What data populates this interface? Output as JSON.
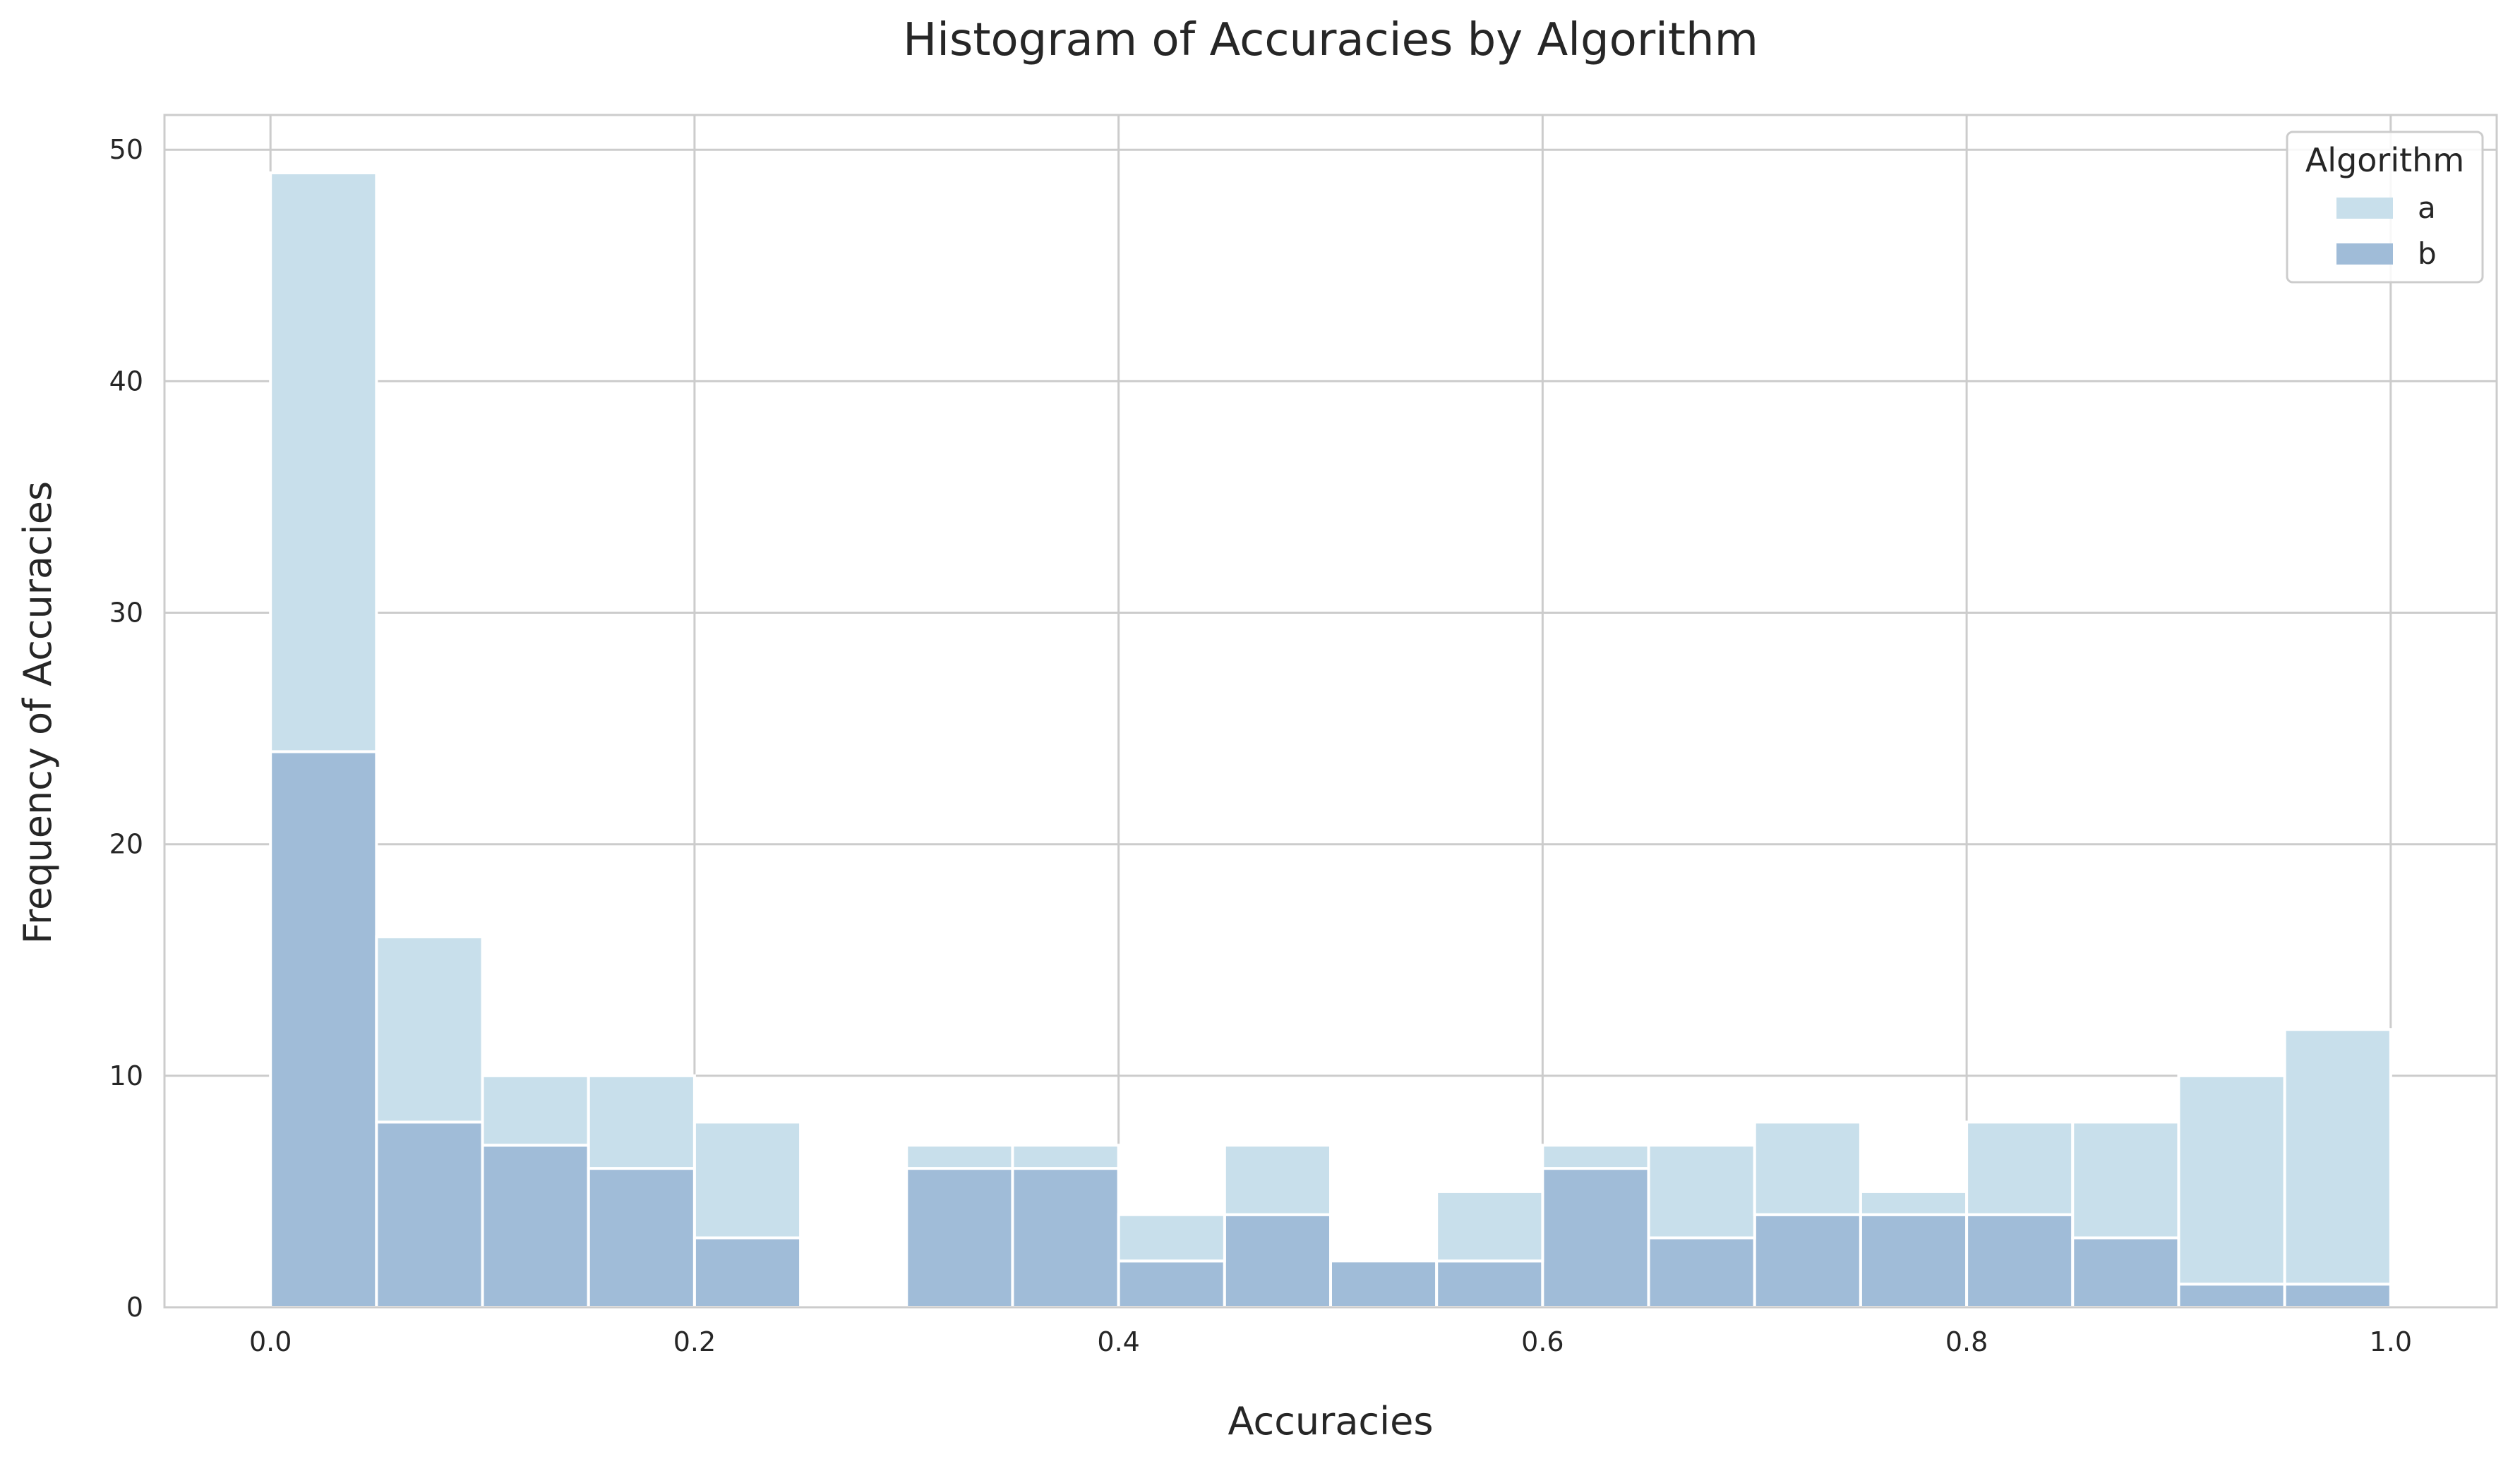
{
  "chart_data": {
    "type": "bar",
    "title": "Histogram of Accuracies by Algorithm",
    "xlabel": "Accuracies",
    "ylabel": "Frequency of Accuracies",
    "xlim": [
      -0.05,
      1.05
    ],
    "ylim": [
      0,
      51.5
    ],
    "x_ticks": [
      0.0,
      0.2,
      0.4,
      0.6,
      0.8,
      1.0
    ],
    "x_tick_labels": [
      "0.0",
      "0.2",
      "0.4",
      "0.6",
      "0.8",
      "1.0"
    ],
    "y_ticks": [
      0,
      10,
      20,
      30,
      40,
      50
    ],
    "y_tick_labels": [
      "0",
      "10",
      "20",
      "30",
      "40",
      "50"
    ],
    "grid": true,
    "stacked": true,
    "bin_edges": [
      0.0,
      0.05,
      0.1,
      0.15,
      0.2,
      0.25,
      0.3,
      0.35,
      0.4,
      0.45,
      0.5,
      0.55,
      0.6,
      0.65,
      0.7,
      0.75,
      0.8,
      0.85,
      0.9,
      0.95,
      1.0
    ],
    "legend": {
      "title": "Algorithm",
      "position": "top-right"
    },
    "series": [
      {
        "name": "b",
        "color": "#a0bcd8",
        "values": [
          24,
          8,
          7,
          6,
          3,
          0,
          6,
          6,
          2,
          4,
          2,
          2,
          6,
          3,
          4,
          4,
          4,
          3,
          1,
          1
        ]
      },
      {
        "name": "a",
        "color": "#c8dfeb",
        "values": [
          25,
          8,
          3,
          4,
          5,
          0,
          1,
          1,
          2,
          3,
          0,
          3,
          1,
          4,
          4,
          1,
          4,
          5,
          9,
          11
        ]
      }
    ],
    "legend_order": [
      "a",
      "b"
    ]
  }
}
